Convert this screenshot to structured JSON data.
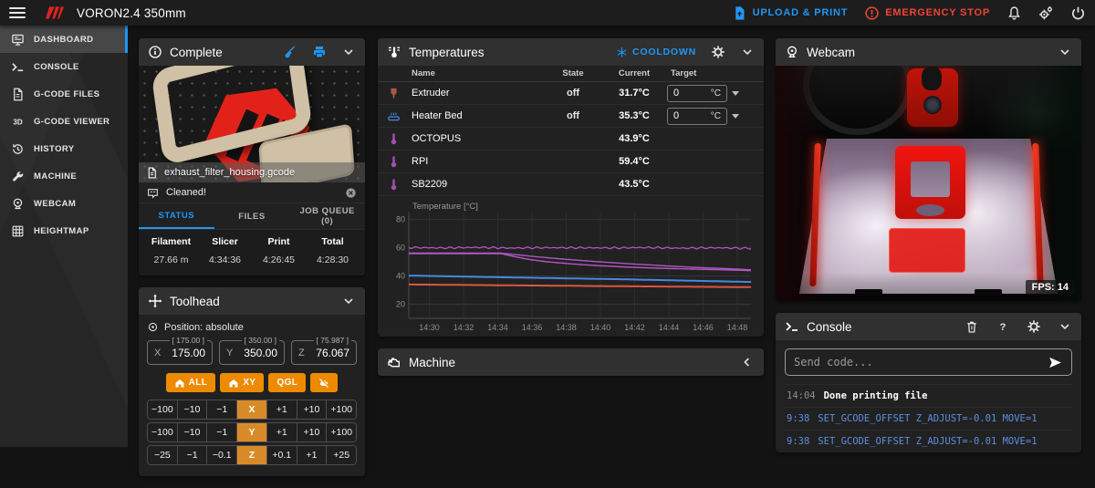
{
  "topbar": {
    "title": "VORON2.4 350mm",
    "upload_label": "UPLOAD & PRINT",
    "estop_label": "EMERGENCY STOP"
  },
  "sidebar": {
    "items": [
      {
        "label": "DASHBOARD",
        "active": true
      },
      {
        "label": "CONSOLE"
      },
      {
        "label": "G-CODE FILES"
      },
      {
        "label": "G-CODE VIEWER"
      },
      {
        "label": "HISTORY"
      },
      {
        "label": "MACHINE"
      },
      {
        "label": "WEBCAM"
      },
      {
        "label": "HEIGHTMAP"
      }
    ]
  },
  "panels": {
    "complete": {
      "title": "Complete",
      "file_name": "exhaust_filter_housing.gcode",
      "message": "Cleaned!",
      "tabs": [
        {
          "label": "STATUS"
        },
        {
          "label": "FILES"
        },
        {
          "label": "JOB QUEUE",
          "count": "(0)"
        }
      ],
      "stats": [
        {
          "label": "Filament",
          "value": "27.66 m"
        },
        {
          "label": "Slicer",
          "value": "4:34:36"
        },
        {
          "label": "Print",
          "value": "4:26:45"
        },
        {
          "label": "Total",
          "value": "4:28:30"
        }
      ]
    },
    "toolhead": {
      "title": "Toolhead",
      "position_label": "Position: absolute",
      "axes": [
        {
          "axis": "X",
          "value": "175.00",
          "target": "[ 175.00 ]"
        },
        {
          "axis": "Y",
          "value": "350.00",
          "target": "[ 350.00 ]"
        },
        {
          "axis": "Z",
          "value": "76.067",
          "target": "[ 75.987 ]"
        }
      ],
      "home_all_label": "ALL",
      "home_xy_label": "XY",
      "qgl_label": "QGL",
      "jog_rows": [
        {
          "axis": "X",
          "neg": [
            "−100",
            "−10",
            "−1"
          ],
          "pos": [
            "+1",
            "+10",
            "+100"
          ]
        },
        {
          "axis": "Y",
          "neg": [
            "−100",
            "−10",
            "−1"
          ],
          "pos": [
            "+1",
            "+10",
            "+100"
          ]
        },
        {
          "axis": "Z",
          "neg": [
            "−25",
            "−1",
            "−0.1"
          ],
          "pos": [
            "+0.1",
            "+1",
            "+25"
          ]
        }
      ]
    },
    "temperatures": {
      "title": "Temperatures",
      "cooldown_label": "COOLDOWN",
      "columns": {
        "name": "Name",
        "state": "State",
        "current": "Current",
        "target": "Target"
      },
      "rows": [
        {
          "name": "Extruder",
          "state": "off",
          "current": "31.7°C",
          "target": "0",
          "unit": "°C"
        },
        {
          "name": "Heater Bed",
          "state": "off",
          "current": "35.3°C",
          "target": "0",
          "unit": "°C"
        },
        {
          "name": "OCTOPUS",
          "state": "",
          "current": "43.9°C"
        },
        {
          "name": "RPI",
          "state": "",
          "current": "59.4°C"
        },
        {
          "name": "SB2209",
          "state": "",
          "current": "43.5°C"
        }
      ],
      "chart": {
        "type": "line",
        "title": "Temperature [°C]",
        "ylim": [
          10,
          85
        ],
        "yticks": [
          20,
          40,
          60,
          80
        ],
        "xlim": [
          0,
          20
        ],
        "xticks": [
          {
            "t": 1.2,
            "label": "14:30"
          },
          {
            "t": 3.2,
            "label": "14:32"
          },
          {
            "t": 5.2,
            "label": "14:34"
          },
          {
            "t": 7.2,
            "label": "14:36"
          },
          {
            "t": 9.2,
            "label": "14:38"
          },
          {
            "t": 11.2,
            "label": "14:40"
          },
          {
            "t": 13.2,
            "label": "14:42"
          },
          {
            "t": 15.2,
            "label": "14:44"
          },
          {
            "t": 17.2,
            "label": "14:46"
          },
          {
            "t": 19.2,
            "label": "14:48"
          }
        ],
        "series": [
          {
            "name": "Extruder",
            "color": "#dd5640",
            "width": 2,
            "points": [
              [
                0,
                34.0
              ],
              [
                6,
                33.4
              ],
              [
                12,
                32.8
              ],
              [
                20,
                32.1
              ]
            ]
          },
          {
            "name": "Heater Bed",
            "color": "#4a86e0",
            "width": 2,
            "points": [
              [
                0,
                40.3
              ],
              [
                4,
                39.4
              ],
              [
                8,
                38.6
              ],
              [
                12,
                37.8
              ],
              [
                16,
                36.8
              ],
              [
                20,
                35.8
              ]
            ]
          },
          {
            "name": "RPI",
            "color": "#c050c8",
            "width": 1.2,
            "jitter": 0.45,
            "points": [
              [
                0,
                60.2
              ],
              [
                2,
                59.9
              ],
              [
                4,
                60.3
              ],
              [
                6,
                59.8
              ],
              [
                8,
                60.1
              ],
              [
                10,
                60.0
              ],
              [
                12,
                59.9
              ],
              [
                14,
                60.2
              ],
              [
                16,
                59.7
              ],
              [
                18,
                60.0
              ],
              [
                20,
                59.6
              ]
            ]
          },
          {
            "name": "OCTOPUS",
            "color": "#a85ac8",
            "width": 1.4,
            "points": [
              [
                0,
                56.2
              ],
              [
                5.4,
                56.2
              ],
              [
                6.2,
                55.2
              ],
              [
                7.5,
                53.6
              ],
              [
                9,
                52.0
              ],
              [
                11,
                50.2
              ],
              [
                13,
                48.6
              ],
              [
                15,
                47.2
              ],
              [
                17,
                46.0
              ],
              [
                19,
                45.0
              ],
              [
                20,
                44.4
              ]
            ]
          },
          {
            "name": "SB2209",
            "color": "#bc55c8",
            "width": 1.4,
            "points": [
              [
                0,
                55.9
              ],
              [
                5.4,
                55.9
              ],
              [
                6,
                54.2
              ],
              [
                7,
                51.8
              ],
              [
                8,
                50.2
              ],
              [
                9.5,
                48.6
              ],
              [
                11,
                47.4
              ],
              [
                13,
                46.2
              ],
              [
                15,
                45.4
              ],
              [
                17,
                44.8
              ],
              [
                19,
                44.2
              ],
              [
                20,
                43.9
              ]
            ]
          }
        ]
      }
    },
    "machine": {
      "title": "Machine"
    },
    "webcam": {
      "title": "Webcam",
      "fps": "FPS: 14"
    },
    "console": {
      "title": "Console",
      "placeholder": "Send code...",
      "entries": [
        {
          "time": "14:04",
          "text": "Done printing file"
        },
        {
          "time": "9:38",
          "text": "SET_GCODE_OFFSET Z_ADJUST=-0.01 MOVE=1"
        },
        {
          "time": "9:38",
          "text": "SET_GCODE_OFFSET Z_ADJUST=-0.01 MOVE=1"
        }
      ]
    }
  },
  "colors": {
    "accent_blue": "#2196f3",
    "accent_red": "#f44336",
    "accent_orange": "#ed8b00",
    "command_blue": "#5c8fe0"
  }
}
